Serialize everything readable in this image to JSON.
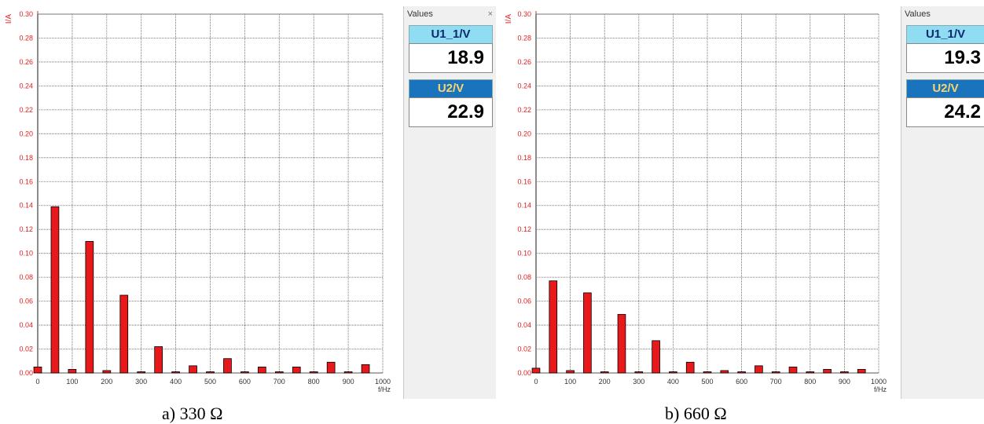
{
  "captions": [
    "a) 330 Ω",
    "b) 660 Ω"
  ],
  "values_panels": [
    {
      "title": "Values",
      "close_icon": "×",
      "items": [
        {
          "label": "U1_1/V",
          "value": "18.9"
        },
        {
          "label": "U2/V",
          "value": "22.9"
        }
      ]
    },
    {
      "title": "Values",
      "close_icon": "",
      "items": [
        {
          "label": "U1_1/V",
          "value": "19.3"
        },
        {
          "label": "U2/V",
          "value": "24.2"
        }
      ]
    }
  ],
  "colors": {
    "bar": "#e8191a",
    "axis_y": "#e02020",
    "grid": "#5a5a5a",
    "u1_label_bg": "#8fdcf3",
    "u2_label_bg": "#1a74bd"
  },
  "chart_data": [
    {
      "type": "bar",
      "ylabel": "I/A",
      "xlabel": "f/Hz",
      "xlim": [
        0,
        1000
      ],
      "ylim": [
        0,
        0.3
      ],
      "x_ticks": [
        "0",
        "100",
        "200",
        "300",
        "400",
        "500",
        "600",
        "700",
        "800",
        "900",
        "1000"
      ],
      "y_ticks": [
        "0.00",
        "0.02",
        "0.04",
        "0.06",
        "0.08",
        "0.10",
        "0.12",
        "0.14",
        "0.16",
        "0.18",
        "0.20",
        "0.22",
        "0.24",
        "0.26",
        "0.28",
        "0.30"
      ],
      "grid": true,
      "x": [
        0,
        50,
        100,
        150,
        200,
        250,
        300,
        350,
        400,
        450,
        500,
        550,
        600,
        650,
        700,
        750,
        800,
        850,
        900,
        950
      ],
      "values": [
        0.005,
        0.139,
        0.003,
        0.11,
        0.002,
        0.065,
        0.001,
        0.022,
        0.001,
        0.006,
        0.001,
        0.012,
        0.001,
        0.005,
        0.001,
        0.005,
        0.001,
        0.009,
        0.001,
        0.007
      ]
    },
    {
      "type": "bar",
      "ylabel": "I/A",
      "xlabel": "f/Hz",
      "xlim": [
        0,
        1000
      ],
      "ylim": [
        0,
        0.3
      ],
      "x_ticks": [
        "0",
        "100",
        "200",
        "300",
        "400",
        "500",
        "600",
        "700",
        "800",
        "900",
        "1000"
      ],
      "y_ticks": [
        "0.00",
        "0.02",
        "0.04",
        "0.06",
        "0.08",
        "0.10",
        "0.12",
        "0.14",
        "0.16",
        "0.18",
        "0.20",
        "0.22",
        "0.24",
        "0.26",
        "0.28",
        "0.30"
      ],
      "grid": true,
      "x": [
        0,
        50,
        100,
        150,
        200,
        250,
        300,
        350,
        400,
        450,
        500,
        550,
        600,
        650,
        700,
        750,
        800,
        850,
        900,
        950
      ],
      "values": [
        0.004,
        0.077,
        0.002,
        0.067,
        0.001,
        0.049,
        0.001,
        0.027,
        0.001,
        0.009,
        0.001,
        0.002,
        0.001,
        0.006,
        0.001,
        0.005,
        0.001,
        0.003,
        0.001,
        0.003
      ]
    }
  ]
}
